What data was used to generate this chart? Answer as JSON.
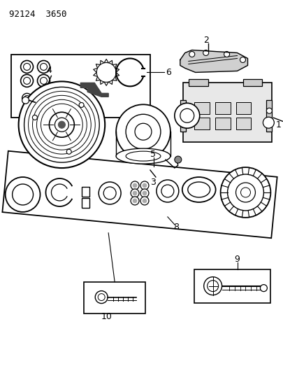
{
  "title": "92124 3650",
  "bg_color": "#ffffff",
  "line_color": "#000000",
  "fig_width": 4.06,
  "fig_height": 5.33,
  "dpi": 100
}
